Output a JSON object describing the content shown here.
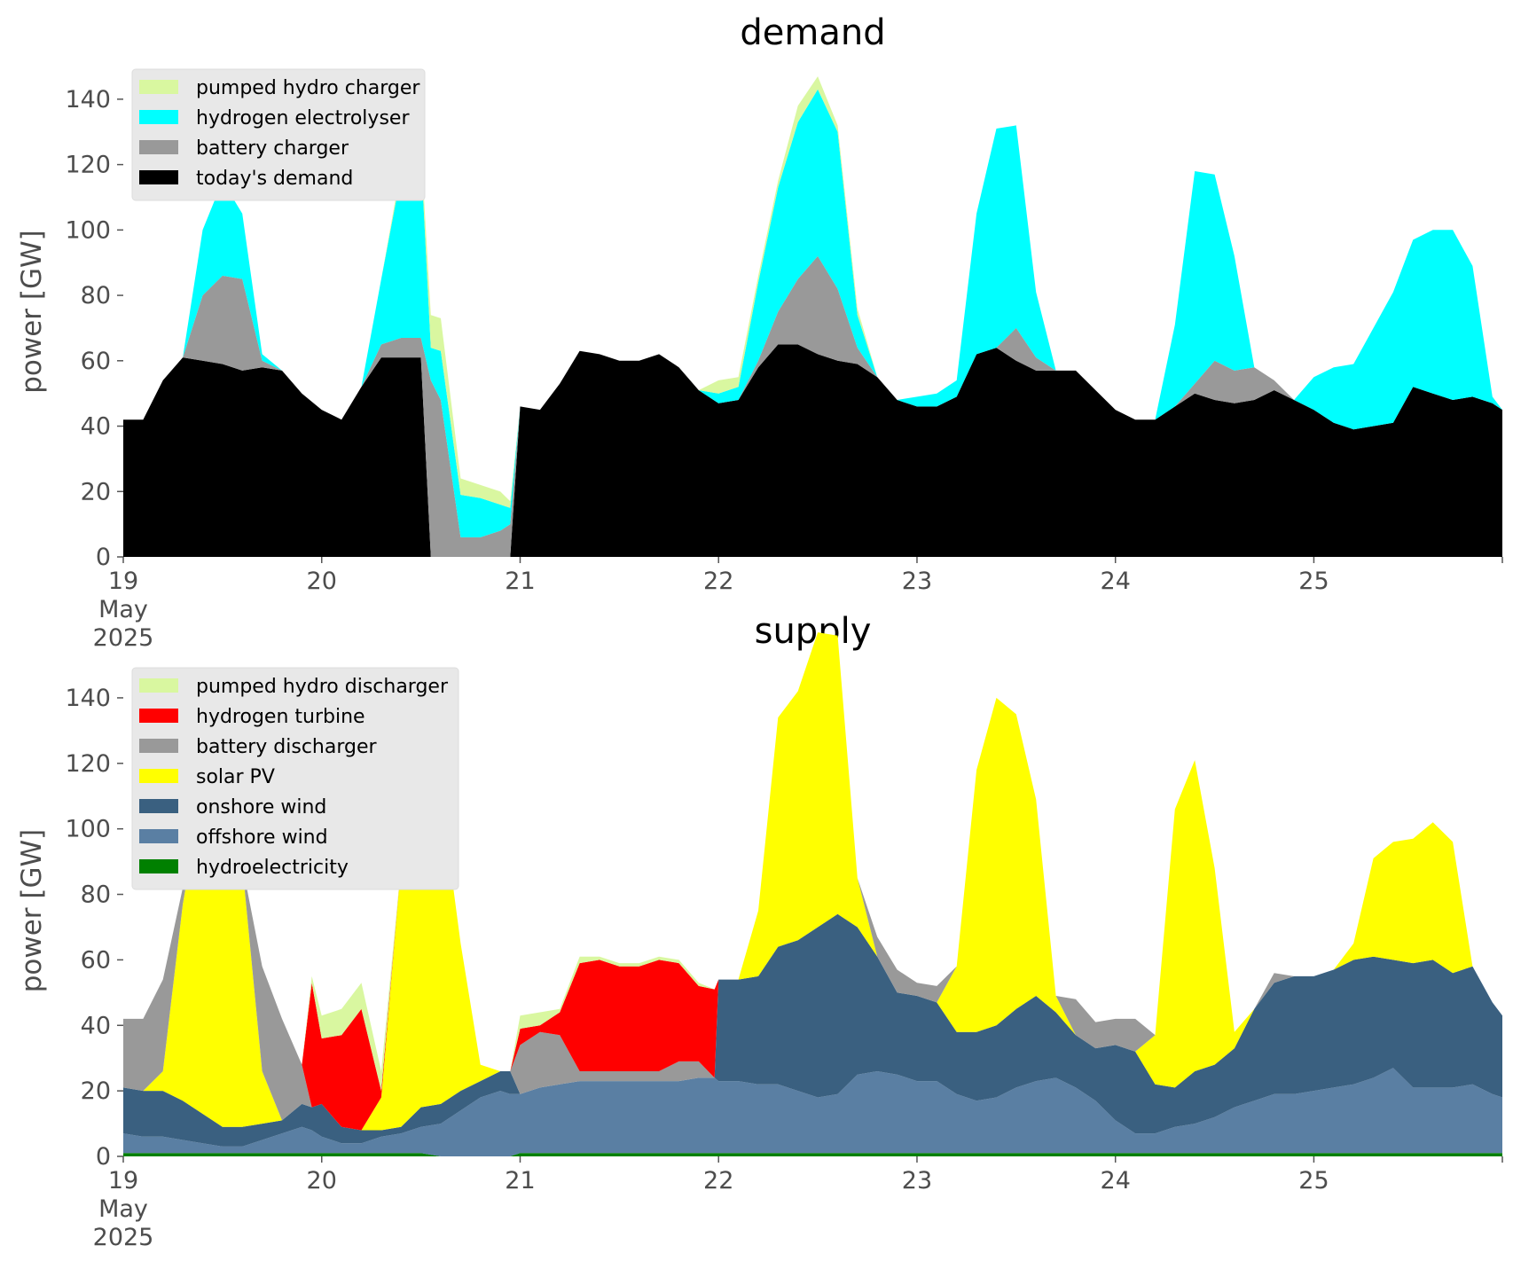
{
  "chart_data": [
    {
      "type": "area",
      "stacked": true,
      "title": "demand",
      "ylabel": "power [GW]",
      "ylim": [
        0,
        150
      ],
      "yticks": [
        0,
        20,
        40,
        60,
        80,
        100,
        120,
        140
      ],
      "xlim": [
        0,
        6.95
      ],
      "xticks": [
        {
          "value": 0,
          "lines": [
            "19",
            "May",
            "2025"
          ]
        },
        {
          "value": 1,
          "lines": [
            "20"
          ]
        },
        {
          "value": 2,
          "lines": [
            "21"
          ]
        },
        {
          "value": 3,
          "lines": [
            "22"
          ]
        },
        {
          "value": 4,
          "lines": [
            "23"
          ]
        },
        {
          "value": 5,
          "lines": [
            "24"
          ]
        },
        {
          "value": 6,
          "lines": [
            "25"
          ]
        }
      ],
      "x_unit": "days since 19 May 2025",
      "x": [
        0,
        0.1,
        0.2,
        0.3,
        0.4,
        0.5,
        0.6,
        0.7,
        0.8,
        0.9,
        1.0,
        1.1,
        1.2,
        1.3,
        1.4,
        1.5,
        1.55,
        1.6,
        1.7,
        1.8,
        1.9,
        1.95,
        2.0,
        2.1,
        2.2,
        2.3,
        2.4,
        2.5,
        2.6,
        2.7,
        2.8,
        2.9,
        3.0,
        3.1,
        3.2,
        3.3,
        3.4,
        3.5,
        3.6,
        3.7,
        3.8,
        3.9,
        4.0,
        4.1,
        4.2,
        4.3,
        4.4,
        4.5,
        4.6,
        4.7,
        4.8,
        4.9,
        5.0,
        5.1,
        5.2,
        5.3,
        5.4,
        5.5,
        5.6,
        5.7,
        5.8,
        5.9,
        6.0,
        6.1,
        6.2,
        6.3,
        6.4,
        6.5,
        6.6,
        6.7,
        6.8,
        6.9,
        6.95
      ],
      "legend_position": "upper-left",
      "series": [
        {
          "name": "today's demand",
          "color": "#000000",
          "values": [
            42,
            42,
            54,
            61,
            60,
            59,
            57,
            58,
            57,
            50,
            45,
            42,
            52,
            61,
            61,
            61,
            0,
            0,
            0,
            0,
            0,
            0,
            46,
            45,
            53,
            63,
            62,
            60,
            60,
            62,
            58,
            51,
            47,
            48,
            58,
            65,
            65,
            62,
            60,
            59,
            55,
            48,
            46,
            46,
            49,
            62,
            64,
            60,
            57,
            57,
            57,
            51,
            45,
            42,
            42,
            46,
            50,
            48,
            47,
            48,
            51,
            48,
            45,
            41,
            39,
            40,
            41,
            52,
            50,
            48,
            49,
            47,
            45
          ]
        },
        {
          "name": "battery charger",
          "color": "#999999",
          "values": [
            0,
            0,
            0,
            0,
            20,
            27,
            28,
            2,
            0,
            0,
            0,
            0,
            0,
            4,
            6,
            6,
            54,
            48,
            6,
            6,
            8,
            10,
            0,
            0,
            0,
            0,
            0,
            0,
            0,
            0,
            0,
            0,
            0,
            0,
            2,
            10,
            20,
            30,
            22,
            5,
            0,
            0,
            0,
            0,
            0,
            0,
            0,
            10,
            4,
            0,
            0,
            0,
            0,
            0,
            0,
            0,
            3,
            12,
            10,
            10,
            3,
            0,
            0,
            0,
            0,
            0,
            0,
            0,
            0,
            0,
            0,
            0,
            0
          ]
        },
        {
          "name": "hydrogen electrolyser",
          "color": "#00ffff",
          "values": [
            0,
            0,
            0,
            0,
            20,
            29,
            20,
            2,
            0,
            0,
            0,
            0,
            0,
            20,
            50,
            56,
            10,
            15,
            13,
            12,
            8,
            5,
            0,
            0,
            0,
            0,
            0,
            0,
            0,
            0,
            0,
            0,
            3,
            4,
            24,
            38,
            48,
            51,
            48,
            10,
            0,
            0,
            3,
            4,
            5,
            43,
            67,
            62,
            20,
            0,
            0,
            0,
            0,
            0,
            0,
            25,
            65,
            57,
            35,
            0,
            0,
            0,
            10,
            17,
            20,
            30,
            40,
            45,
            50,
            52,
            40,
            2,
            0
          ]
        },
        {
          "name": "pumped hydro charger",
          "color": "#d9f7a0",
          "values": [
            0,
            0,
            0,
            0,
            0,
            0,
            0,
            0,
            0,
            0,
            0,
            0,
            0,
            0,
            2,
            3,
            10,
            10,
            5,
            4,
            4,
            2,
            0,
            0,
            0,
            0,
            0,
            0,
            0,
            0,
            0,
            0,
            4,
            3,
            2,
            2,
            5,
            4,
            2,
            2,
            0,
            0,
            0,
            0,
            0,
            0,
            0,
            0,
            0,
            0,
            0,
            0,
            0,
            0,
            0,
            0,
            0,
            0,
            0,
            0,
            0,
            0,
            0,
            0,
            0,
            0,
            0,
            0,
            0,
            0,
            0,
            0,
            0
          ]
        }
      ]
    },
    {
      "type": "area",
      "stacked": true,
      "title": "supply",
      "ylabel": "power [GW]",
      "ylim": [
        0,
        150
      ],
      "yticks": [
        0,
        20,
        40,
        60,
        80,
        100,
        120,
        140
      ],
      "xlim": [
        0,
        6.95
      ],
      "xticks": [
        {
          "value": 0,
          "lines": [
            "19",
            "May",
            "2025"
          ]
        },
        {
          "value": 1,
          "lines": [
            "20"
          ]
        },
        {
          "value": 2,
          "lines": [
            "21"
          ]
        },
        {
          "value": 3,
          "lines": [
            "22"
          ]
        },
        {
          "value": 4,
          "lines": [
            "23"
          ]
        },
        {
          "value": 5,
          "lines": [
            "24"
          ]
        },
        {
          "value": 6,
          "lines": [
            "25"
          ]
        }
      ],
      "x_unit": "days since 19 May 2025",
      "x": [
        0,
        0.1,
        0.2,
        0.3,
        0.4,
        0.5,
        0.6,
        0.7,
        0.8,
        0.9,
        0.95,
        1.0,
        1.1,
        1.2,
        1.3,
        1.4,
        1.5,
        1.6,
        1.7,
        1.8,
        1.9,
        1.95,
        2.0,
        2.1,
        2.2,
        2.3,
        2.4,
        2.5,
        2.6,
        2.7,
        2.8,
        2.9,
        2.98,
        3.0,
        3.1,
        3.2,
        3.3,
        3.4,
        3.5,
        3.6,
        3.7,
        3.8,
        3.9,
        4.0,
        4.1,
        4.2,
        4.3,
        4.4,
        4.5,
        4.6,
        4.7,
        4.8,
        4.9,
        5.0,
        5.1,
        5.2,
        5.3,
        5.4,
        5.5,
        5.6,
        5.7,
        5.8,
        5.9,
        6.0,
        6.1,
        6.2,
        6.3,
        6.4,
        6.5,
        6.6,
        6.7,
        6.8,
        6.9,
        6.95
      ],
      "legend_position": "upper-left",
      "series": [
        {
          "name": "hydroelectricity",
          "color": "#008000",
          "values": [
            1,
            1,
            1,
            1,
            1,
            1,
            1,
            1,
            1,
            1,
            1,
            1,
            1,
            1,
            1,
            1,
            1,
            0,
            0,
            0,
            0,
            0,
            1,
            1,
            1,
            1,
            1,
            1,
            1,
            1,
            1,
            1,
            1,
            1,
            1,
            1,
            1,
            1,
            1,
            1,
            1,
            1,
            1,
            1,
            1,
            1,
            1,
            1,
            1,
            1,
            1,
            1,
            1,
            1,
            1,
            1,
            1,
            1,
            1,
            1,
            1,
            1,
            1,
            1,
            1,
            1,
            1,
            1,
            1,
            1,
            1,
            1,
            1,
            1
          ]
        },
        {
          "name": "offshore wind",
          "color": "#5a7fa3",
          "values": [
            6,
            5,
            5,
            4,
            3,
            2,
            2,
            4,
            6,
            8,
            7,
            5,
            3,
            3,
            5,
            6,
            8,
            10,
            14,
            18,
            20,
            19,
            18,
            20,
            21,
            22,
            22,
            22,
            22,
            22,
            22,
            23,
            23,
            22,
            22,
            21,
            21,
            19,
            17,
            18,
            24,
            25,
            24,
            22,
            22,
            18,
            16,
            17,
            20,
            22,
            23,
            20,
            16,
            10,
            6,
            6,
            8,
            9,
            11,
            14,
            16,
            18,
            18,
            19,
            20,
            21,
            23,
            26,
            20,
            20,
            20,
            21,
            18,
            17
          ]
        },
        {
          "name": "onshore wind",
          "color": "#3a6080",
          "values": [
            14,
            14,
            14,
            12,
            9,
            6,
            6,
            5,
            4,
            7,
            7,
            10,
            5,
            4,
            2,
            2,
            6,
            6,
            6,
            5,
            6,
            7,
            0,
            0,
            0,
            0,
            0,
            0,
            0,
            0,
            0,
            0,
            0,
            31,
            31,
            33,
            42,
            46,
            52,
            55,
            45,
            35,
            25,
            26,
            24,
            19,
            21,
            22,
            24,
            26,
            20,
            16,
            16,
            23,
            25,
            15,
            12,
            16,
            16,
            18,
            28,
            34,
            36,
            35,
            36,
            38,
            37,
            33,
            38,
            39,
            35,
            36,
            28,
            25
          ]
        },
        {
          "name": "solar PV",
          "color": "#ffff00",
          "values": [
            0,
            0,
            6,
            60,
            99,
            103,
            80,
            16,
            0,
            0,
            0,
            0,
            0,
            0,
            10,
            80,
            110,
            95,
            45,
            5,
            0,
            0,
            0,
            0,
            0,
            0,
            0,
            0,
            0,
            0,
            0,
            0,
            0,
            0,
            0,
            20,
            70,
            76,
            90,
            85,
            15,
            0,
            0,
            0,
            0,
            20,
            80,
            100,
            90,
            60,
            5,
            0,
            0,
            0,
            0,
            15,
            85,
            95,
            60,
            5,
            0,
            0,
            0,
            0,
            0,
            5,
            30,
            36,
            38,
            42,
            40,
            0,
            0,
            0
          ]
        },
        {
          "name": "battery discharger",
          "color": "#999999",
          "values": [
            21,
            22,
            28,
            5,
            0,
            0,
            0,
            32,
            31,
            12,
            0,
            0,
            0,
            0,
            0,
            0,
            0,
            0,
            0,
            0,
            0,
            0,
            15,
            17,
            15,
            3,
            3,
            3,
            3,
            3,
            6,
            5,
            0,
            0,
            0,
            0,
            0,
            0,
            0,
            0,
            0,
            6,
            7,
            4,
            5,
            0,
            0,
            0,
            0,
            0,
            0,
            11,
            8,
            8,
            10,
            0,
            0,
            0,
            0,
            0,
            0,
            3,
            0,
            0,
            0,
            0,
            0,
            0,
            0,
            0,
            0,
            0,
            0,
            0
          ]
        },
        {
          "name": "hydrogen turbine",
          "color": "#ff0000",
          "values": [
            0,
            0,
            0,
            0,
            0,
            0,
            0,
            0,
            0,
            0,
            38,
            20,
            28,
            37,
            2,
            0,
            0,
            0,
            0,
            0,
            0,
            0,
            5,
            2,
            7,
            33,
            34,
            32,
            32,
            34,
            30,
            23,
            27,
            0,
            0,
            0,
            0,
            0,
            0,
            0,
            0,
            0,
            0,
            0,
            0,
            0,
            0,
            0,
            0,
            0,
            0,
            0,
            0,
            0,
            0,
            0,
            0,
            0,
            0,
            0,
            0,
            0,
            0,
            0,
            0,
            0,
            0,
            0,
            0,
            0,
            0,
            0,
            0,
            0
          ]
        },
        {
          "name": "pumped hydro discharger",
          "color": "#d9f7a0",
          "values": [
            0,
            0,
            0,
            0,
            0,
            0,
            0,
            0,
            0,
            0,
            2,
            7,
            8,
            8,
            6,
            0,
            0,
            0,
            0,
            0,
            0,
            0,
            4,
            4,
            1,
            2,
            1,
            1,
            1,
            1,
            1,
            1,
            0,
            0,
            0,
            0,
            0,
            0,
            0,
            0,
            0,
            0,
            0,
            0,
            0,
            0,
            0,
            0,
            0,
            0,
            0,
            0,
            0,
            0,
            0,
            0,
            0,
            0,
            0,
            0,
            0,
            0,
            0,
            0,
            0,
            0,
            0,
            0,
            0,
            0,
            0,
            0,
            0,
            0
          ]
        }
      ]
    }
  ]
}
